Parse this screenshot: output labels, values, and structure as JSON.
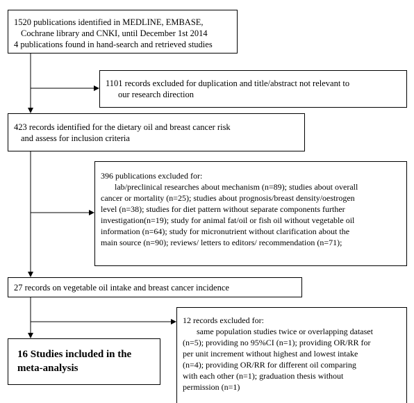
{
  "flow": {
    "identified": {
      "lines": [
        "1520 publications identified in MEDLINE, EMBASE,",
        "Cochrane library and CNKI, until December 1st 2014",
        "4 publications found in hand-search and retrieved studies"
      ]
    },
    "excluded_duplicates": {
      "lines": [
        "1101 records excluded for duplication and title/abstract not relevant to",
        "our research direction"
      ]
    },
    "screened": {
      "lines": [
        "423 records identified for the dietary oil and breast cancer risk",
        "and assess for inclusion criteria"
      ]
    },
    "excluded_publications": {
      "lines": [
        "396 publications excluded for:",
        "lab/preclinical researches about mechanism (n=89); studies about overall",
        "cancer or mortality (n=25); studies about prognosis/breast density/oestrogen",
        "level (n=38); studies for diet pattern without separate components further",
        "investigation(n=19); study for animal fat/oil or fish oil without vegetable oil",
        "information (n=64); study for micronutrient without clarification about the",
        "main source (n=90); reviews/ letters to editors/ recommendation (n=71);"
      ]
    },
    "eligible": {
      "lines": [
        "27  records on vegetable oil intake and  breast cancer incidence"
      ]
    },
    "excluded_records": {
      "lines": [
        "12 records excluded for:",
        "same population studies twice or overlapping dataset",
        "(n=5); providing no 95%CI (n=1); providing OR/RR for",
        "per unit increment without highest and lowest intake",
        "(n=4); providing OR/RR for different oil comparing",
        "with each other (n=1); graduation thesis without",
        "permission (n=1)"
      ]
    },
    "included": {
      "lines": [
        "16  Studies included in the",
        "meta-analysis"
      ]
    }
  }
}
